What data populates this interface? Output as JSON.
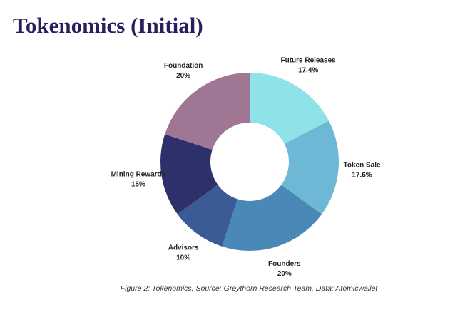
{
  "chart_data": {
    "type": "donut",
    "title": "Tokenomics (Initial)",
    "categories": [
      "Future Releases",
      "Token Sale",
      "Founders",
      "Advisors",
      "Mining Rewards",
      "Foundation"
    ],
    "values": [
      17.4,
      17.6,
      20,
      10,
      15,
      20
    ],
    "value_labels": [
      "17.4%",
      "17.6%",
      "20%",
      "10%",
      "15%",
      "20%"
    ],
    "colors": [
      "#8fe3e8",
      "#6db8d4",
      "#4a88b8",
      "#3b5b97",
      "#2e3069",
      "#a07695"
    ],
    "caption": "Figure 2:  Tokenomics, Source: Greythorn Research Team, Data: Atomicwallet"
  }
}
